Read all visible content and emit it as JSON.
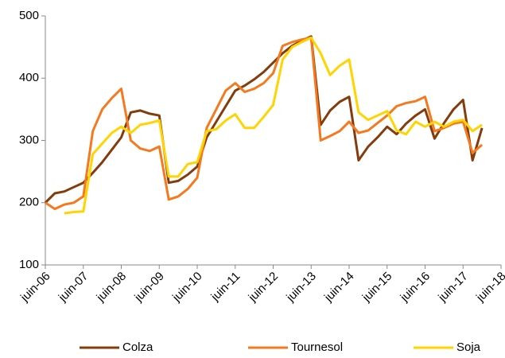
{
  "chart_data": {
    "type": "line",
    "categories": [
      "juin-06",
      null,
      null,
      null,
      "juin-07",
      null,
      null,
      null,
      "juin-08",
      null,
      null,
      null,
      "juin-09",
      null,
      null,
      null,
      "juin-10",
      null,
      null,
      null,
      "juin-11",
      null,
      null,
      null,
      "juin-12",
      null,
      null,
      null,
      "juin-13",
      null,
      null,
      null,
      "juin-14",
      null,
      null,
      null,
      "juin-15",
      null,
      null,
      null,
      "juin-16",
      null,
      null,
      null,
      "juin-17",
      null,
      null,
      null,
      "juin-18"
    ],
    "series": [
      {
        "name": "Colza",
        "color": "#843c0c",
        "values": [
          200,
          215,
          218,
          225,
          232,
          248,
          265,
          285,
          305,
          345,
          348,
          343,
          340,
          232,
          235,
          245,
          258,
          305,
          330,
          355,
          380,
          388,
          398,
          410,
          425,
          440,
          452,
          460,
          467,
          325,
          348,
          362,
          370,
          268,
          290,
          305,
          322,
          310,
          327,
          340,
          350,
          303,
          328,
          350,
          365,
          268,
          320,
          null,
          null
        ]
      },
      {
        "name": "Tournesol",
        "color": "#f4791f",
        "values": [
          200,
          190,
          197,
          200,
          210,
          315,
          350,
          368,
          383,
          300,
          287,
          283,
          290,
          205,
          210,
          222,
          240,
          320,
          350,
          380,
          392,
          378,
          383,
          392,
          408,
          452,
          458,
          462,
          465,
          300,
          307,
          315,
          330,
          312,
          316,
          328,
          340,
          355,
          360,
          363,
          370,
          315,
          320,
          327,
          330,
          280,
          293,
          null,
          null
        ]
      },
      {
        "name": "Soja",
        "color": "#ffd400",
        "values": [
          null,
          null,
          183,
          185,
          186,
          278,
          295,
          312,
          322,
          312,
          325,
          328,
          332,
          242,
          242,
          262,
          265,
          315,
          318,
          332,
          342,
          320,
          320,
          338,
          357,
          430,
          450,
          458,
          465,
          440,
          405,
          420,
          430,
          345,
          333,
          340,
          347,
          316,
          310,
          330,
          322,
          330,
          322,
          330,
          333,
          315,
          325,
          null,
          null
        ]
      }
    ],
    "ylim": [
      100,
      500
    ],
    "yticks": [
      100,
      200,
      300,
      400,
      500
    ],
    "grid": false,
    "legend": "bottom"
  }
}
